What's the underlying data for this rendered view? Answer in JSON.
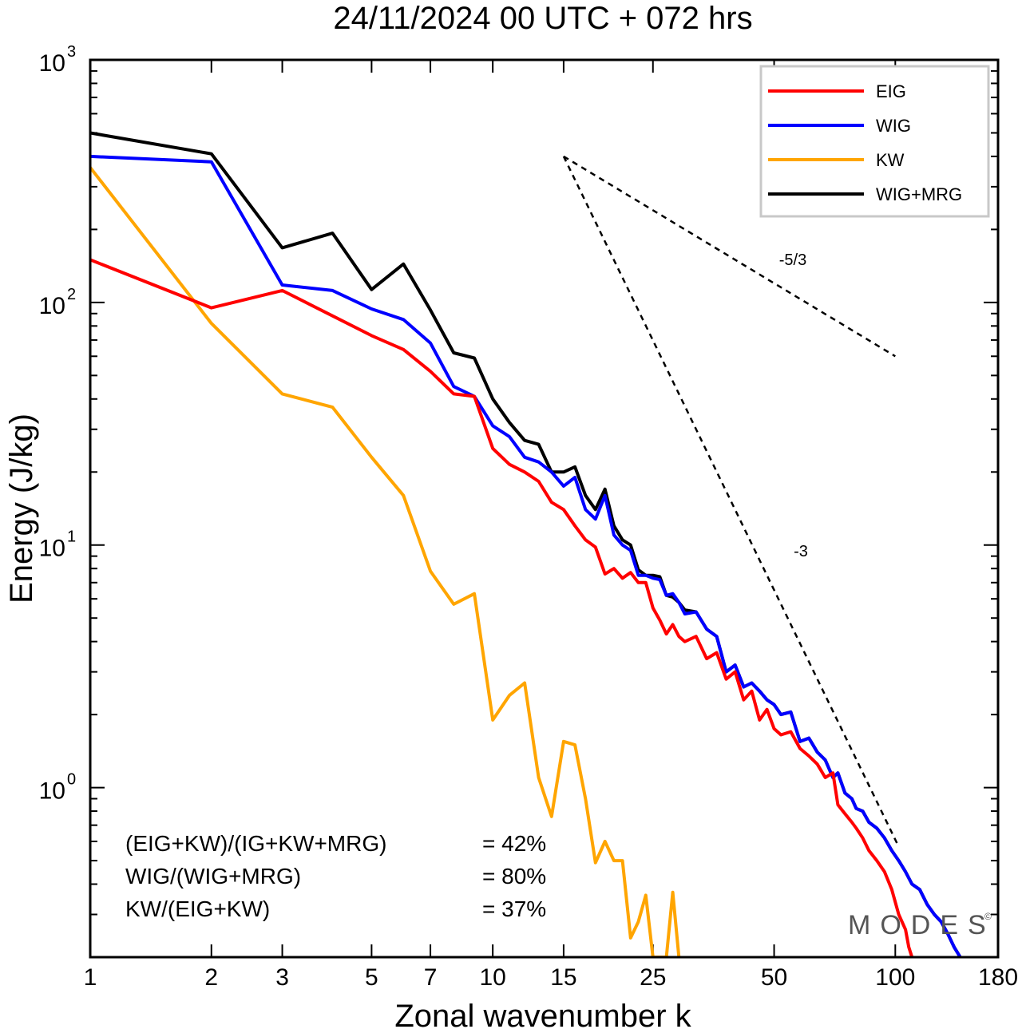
{
  "chart_data": {
    "type": "line",
    "title": "24/11/2024  00 UTC  + 072 hrs",
    "xlabel": "Zonal wavenumber k",
    "ylabel": "Energy (J/kg)",
    "x_scale": "log",
    "y_scale": "log",
    "xlim": [
      1,
      180
    ],
    "ylim": [
      0.2,
      1000
    ],
    "x_ticks": [
      1,
      2,
      3,
      5,
      7,
      10,
      15,
      25,
      50,
      100,
      180
    ],
    "x_tick_labels": [
      "1",
      "2",
      "3",
      "5",
      "7",
      "10",
      "15",
      "25",
      "50",
      "100",
      "180"
    ],
    "y_ticks": [
      {
        "value": 1000,
        "base": "10",
        "exp": "3"
      },
      {
        "value": 100,
        "base": "10",
        "exp": "2"
      },
      {
        "value": 10,
        "base": "10",
        "exp": "1"
      },
      {
        "value": 1,
        "base": "10",
        "exp": "0"
      }
    ],
    "legend_position": "top-right",
    "series": [
      {
        "name": "EIG",
        "color": "#ff0000",
        "points": [
          [
            1,
            150
          ],
          [
            2,
            95
          ],
          [
            3,
            112
          ],
          [
            4,
            88
          ],
          [
            5,
            73
          ],
          [
            6,
            64
          ],
          [
            7,
            52
          ],
          [
            8,
            42
          ],
          [
            9,
            41
          ],
          [
            10,
            25
          ],
          [
            11,
            21.5
          ],
          [
            12,
            20
          ],
          [
            13,
            18.3
          ],
          [
            14,
            15
          ],
          [
            15,
            14
          ],
          [
            16,
            12
          ],
          [
            17,
            10.5
          ],
          [
            18,
            9.8
          ],
          [
            19,
            7.6
          ],
          [
            20,
            8
          ],
          [
            21,
            7.3
          ],
          [
            22,
            7.7
          ],
          [
            23,
            7
          ],
          [
            24,
            7
          ],
          [
            25,
            5.5
          ],
          [
            26,
            4.9
          ],
          [
            27,
            4.3
          ],
          [
            28,
            4.7
          ],
          [
            29,
            4.2
          ],
          [
            30,
            4
          ],
          [
            32,
            4.2
          ],
          [
            34,
            3.4
          ],
          [
            36,
            3.6
          ],
          [
            38,
            2.8
          ],
          [
            40,
            3
          ],
          [
            42,
            2.3
          ],
          [
            44,
            2.5
          ],
          [
            46,
            1.9
          ],
          [
            48,
            2.1
          ],
          [
            50,
            1.75
          ],
          [
            52,
            1.65
          ],
          [
            55,
            1.7
          ],
          [
            58,
            1.45
          ],
          [
            61,
            1.35
          ],
          [
            64,
            1.25
          ],
          [
            67,
            1.1
          ],
          [
            70,
            1.15
          ],
          [
            72,
            0.85
          ],
          [
            75,
            0.78
          ],
          [
            78,
            0.72
          ],
          [
            80,
            0.68
          ],
          [
            83,
            0.62
          ],
          [
            86,
            0.55
          ],
          [
            90,
            0.5
          ],
          [
            94,
            0.45
          ],
          [
            98,
            0.38
          ],
          [
            102,
            0.3
          ],
          [
            106,
            0.26
          ],
          [
            108,
            0.22
          ],
          [
            110,
            0.2
          ]
        ]
      },
      {
        "name": "WIG",
        "color": "#0000ff",
        "points": [
          [
            1,
            400
          ],
          [
            2,
            380
          ],
          [
            3,
            118
          ],
          [
            4,
            112
          ],
          [
            5,
            94
          ],
          [
            6,
            85
          ],
          [
            7,
            68
          ],
          [
            8,
            45
          ],
          [
            9,
            41
          ],
          [
            10,
            31
          ],
          [
            11,
            28
          ],
          [
            12,
            23
          ],
          [
            13,
            22
          ],
          [
            14,
            20
          ],
          [
            15,
            17.5
          ],
          [
            16,
            19
          ],
          [
            17,
            14
          ],
          [
            18,
            12.8
          ],
          [
            19,
            16
          ],
          [
            20,
            11
          ],
          [
            21,
            10
          ],
          [
            22,
            9.5
          ],
          [
            23,
            7.5
          ],
          [
            24,
            7.5
          ],
          [
            25,
            7.3
          ],
          [
            26,
            7.2
          ],
          [
            27,
            6.2
          ],
          [
            28,
            6.3
          ],
          [
            29,
            5.8
          ],
          [
            30,
            5.2
          ],
          [
            32,
            5.3
          ],
          [
            34,
            4.5
          ],
          [
            36,
            4.2
          ],
          [
            38,
            3
          ],
          [
            40,
            3.2
          ],
          [
            42,
            2.6
          ],
          [
            44,
            2.7
          ],
          [
            46,
            2.5
          ],
          [
            48,
            2.3
          ],
          [
            50,
            2.2
          ],
          [
            52,
            2
          ],
          [
            55,
            2.05
          ],
          [
            58,
            1.55
          ],
          [
            61,
            1.6
          ],
          [
            64,
            1.4
          ],
          [
            67,
            1.3
          ],
          [
            70,
            1.1
          ],
          [
            72,
            1.15
          ],
          [
            75,
            0.95
          ],
          [
            78,
            0.9
          ],
          [
            80,
            0.82
          ],
          [
            83,
            0.8
          ],
          [
            86,
            0.72
          ],
          [
            90,
            0.68
          ],
          [
            94,
            0.62
          ],
          [
            98,
            0.55
          ],
          [
            102,
            0.5
          ],
          [
            106,
            0.45
          ],
          [
            110,
            0.4
          ],
          [
            115,
            0.38
          ],
          [
            120,
            0.33
          ],
          [
            125,
            0.3
          ],
          [
            130,
            0.28
          ],
          [
            135,
            0.25
          ],
          [
            140,
            0.22
          ],
          [
            145,
            0.2
          ]
        ]
      },
      {
        "name": "KW",
        "color": "#ffa500",
        "points": [
          [
            1,
            360
          ],
          [
            2,
            82
          ],
          [
            3,
            42
          ],
          [
            4,
            37
          ],
          [
            5,
            23
          ],
          [
            6,
            16
          ],
          [
            7,
            7.8
          ],
          [
            8,
            5.7
          ],
          [
            9,
            6.3
          ],
          [
            10,
            1.9
          ],
          [
            11,
            2.4
          ],
          [
            12,
            2.7
          ],
          [
            13,
            1.1
          ],
          [
            14,
            0.76
          ],
          [
            15,
            1.55
          ],
          [
            16,
            1.5
          ],
          [
            17,
            0.9
          ],
          [
            18,
            0.49
          ],
          [
            19,
            0.6
          ],
          [
            20,
            0.5
          ],
          [
            21,
            0.5
          ],
          [
            22,
            0.24
          ],
          [
            23,
            0.28
          ],
          [
            24,
            0.36
          ],
          [
            25,
            0.2
          ],
          [
            27,
            0.2
          ],
          [
            28,
            0.37
          ],
          [
            29,
            0.2
          ]
        ]
      },
      {
        "name": "WIG+MRG",
        "color": "#000000",
        "points": [
          [
            1,
            500
          ],
          [
            2,
            410
          ],
          [
            3,
            168
          ],
          [
            4,
            193
          ],
          [
            5,
            113
          ],
          [
            6,
            144
          ],
          [
            7,
            93
          ],
          [
            8,
            62
          ],
          [
            9,
            59
          ],
          [
            10,
            40
          ],
          [
            11,
            32
          ],
          [
            12,
            27
          ],
          [
            13,
            26
          ],
          [
            14,
            20
          ],
          [
            15,
            20
          ],
          [
            16,
            21
          ],
          [
            17,
            16
          ],
          [
            18,
            14
          ],
          [
            19,
            17
          ],
          [
            20,
            12
          ],
          [
            21,
            10.5
          ],
          [
            22,
            10
          ],
          [
            23,
            7.9
          ],
          [
            24,
            7.5
          ],
          [
            25,
            7.5
          ],
          [
            26,
            7.4
          ],
          [
            27,
            6.2
          ],
          [
            28,
            6.1
          ],
          [
            29,
            5.8
          ],
          [
            30,
            5.4
          ],
          [
            32,
            5.3
          ],
          [
            34,
            4.5
          ],
          [
            36,
            4.2
          ],
          [
            38,
            3
          ],
          [
            40,
            3.2
          ],
          [
            42,
            2.6
          ],
          [
            44,
            2.7
          ],
          [
            46,
            2.5
          ],
          [
            48,
            2.3
          ],
          [
            50,
            2.2
          ],
          [
            52,
            2
          ],
          [
            55,
            2.05
          ],
          [
            58,
            1.55
          ],
          [
            61,
            1.6
          ],
          [
            64,
            1.4
          ],
          [
            67,
            1.3
          ],
          [
            70,
            1.1
          ],
          [
            72,
            1.15
          ],
          [
            75,
            0.95
          ],
          [
            78,
            0.9
          ],
          [
            80,
            0.82
          ],
          [
            83,
            0.8
          ],
          [
            86,
            0.72
          ],
          [
            90,
            0.68
          ],
          [
            94,
            0.62
          ],
          [
            98,
            0.55
          ],
          [
            102,
            0.5
          ],
          [
            106,
            0.45
          ],
          [
            110,
            0.4
          ],
          [
            115,
            0.38
          ],
          [
            120,
            0.33
          ],
          [
            125,
            0.3
          ],
          [
            130,
            0.28
          ],
          [
            135,
            0.25
          ],
          [
            140,
            0.22
          ],
          [
            145,
            0.2
          ]
        ]
      }
    ],
    "reference_slopes": [
      {
        "label": "-5/3",
        "points": [
          [
            15,
            400
          ],
          [
            100,
            60
          ]
        ]
      },
      {
        "label": "-3",
        "points": [
          [
            15,
            400
          ],
          [
            102,
            0.57
          ]
        ]
      }
    ],
    "ratios": [
      {
        "label": "(EIG+KW)/(IG+KW+MRG)",
        "value": "= 42%"
      },
      {
        "label": "WIG/(WIG+MRG)",
        "value": "= 80%"
      },
      {
        "label": "KW/(EIG+KW)",
        "value": "= 37%"
      }
    ],
    "brand": "MODES",
    "brand_mark": "©"
  }
}
